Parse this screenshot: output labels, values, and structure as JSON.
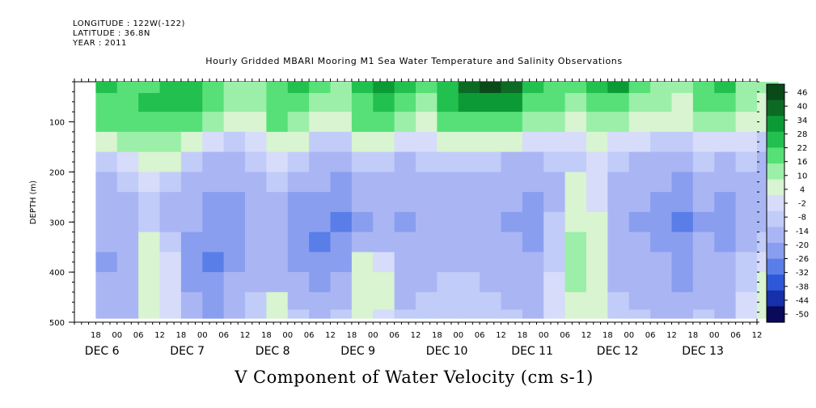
{
  "meta": {
    "longitude": "LONGITUDE : 122W(-122)",
    "latitude": "LATITUDE : 36.8N",
    "year": "YEAR : 2011"
  },
  "colors": {
    "ramp": [
      "#0a0a5a",
      "#1530a8",
      "#2f58d8",
      "#5a7ee8",
      "#8a9ef0",
      "#aab6f4",
      "#c2ccf8",
      "#d6dcfa",
      "#d8f4d0",
      "#9cefa8",
      "#58e078",
      "#22c04e",
      "#0c9a36",
      "#0c6a24",
      "#0a4a18"
    ]
  },
  "chart_data": {
    "type": "heatmap",
    "title": "Hourly Gridded MBARI Mooring M1 Sea Water Temperature and Salinity Observations",
    "xlabel": "V Component of Water Velocity (cm s-1)",
    "ylabel": "DEPTH (m)",
    "ylim": [
      500,
      20
    ],
    "y_ticks": [
      100,
      200,
      300,
      400,
      500
    ],
    "x_hour_ticks": [
      "18",
      "00",
      "06",
      "12",
      "18",
      "00",
      "06",
      "12",
      "18",
      "00",
      "06",
      "12",
      "18",
      "00",
      "06",
      "12",
      "18",
      "00",
      "06",
      "12",
      "18",
      "00",
      "06",
      "12",
      "18",
      "00",
      "06",
      "12",
      "18",
      "00",
      "06",
      "12"
    ],
    "date_labels": [
      "DEC  6",
      "DEC  7",
      "DEC  8",
      "DEC  9",
      "DEC 10",
      "DEC 11",
      "DEC 12",
      "DEC 13"
    ],
    "colorbar_levels": [
      46,
      40,
      34,
      28,
      22,
      16,
      10,
      4,
      -2,
      -8,
      -14,
      -20,
      -26,
      -32,
      -38,
      -44,
      -50
    ],
    "colorbar_labels": [
      "46",
      "40",
      "34",
      "28",
      "22",
      "16",
      "10",
      "4",
      "-2",
      "-8",
      "-14",
      "-20",
      "-26",
      "-32",
      "-38",
      "-44",
      "-50"
    ],
    "data_hours": [
      0,
      6,
      12,
      18,
      24,
      30,
      36,
      42,
      48,
      54,
      60,
      66,
      72,
      78,
      84,
      90,
      96,
      102,
      108,
      114,
      120,
      126,
      132,
      138,
      144,
      150,
      156,
      162,
      168,
      174,
      180,
      186
    ],
    "data_depths": [
      25,
      60,
      100,
      140,
      180,
      220,
      260,
      300,
      340,
      380,
      420,
      460,
      490
    ],
    "values": [
      [
        22,
        14,
        18,
        24,
        26,
        16,
        10,
        12,
        20,
        24,
        16,
        10,
        24,
        30,
        22,
        14,
        26,
        34,
        40,
        34,
        26,
        18,
        14,
        22,
        28,
        16,
        12,
        10,
        18,
        22,
        12,
        8
      ],
      [
        20,
        18,
        22,
        26,
        24,
        14,
        8,
        10,
        20,
        18,
        12,
        8,
        20,
        24,
        18,
        12,
        22,
        28,
        30,
        28,
        20,
        14,
        10,
        18,
        20,
        12,
        10,
        6,
        14,
        16,
        10,
        6
      ],
      [
        14,
        16,
        18,
        20,
        16,
        8,
        4,
        6,
        14,
        10,
        4,
        2,
        14,
        14,
        10,
        6,
        16,
        16,
        18,
        14,
        10,
        8,
        4,
        12,
        10,
        6,
        4,
        2,
        8,
        8,
        6,
        2
      ],
      [
        4,
        8,
        10,
        12,
        6,
        -4,
        -6,
        -2,
        6,
        2,
        -6,
        -8,
        4,
        2,
        -2,
        -4,
        6,
        4,
        6,
        2,
        -2,
        0,
        -4,
        4,
        0,
        -4,
        -6,
        -8,
        0,
        -2,
        -4,
        -6
      ],
      [
        -8,
        -4,
        4,
        2,
        -8,
        -14,
        -12,
        -10,
        -2,
        -10,
        -14,
        -16,
        -10,
        -8,
        -12,
        -10,
        -6,
        -8,
        -6,
        -12,
        -12,
        -8,
        -10,
        -4,
        -10,
        -12,
        -14,
        -16,
        -10,
        -12,
        -10,
        -12
      ],
      [
        -12,
        -10,
        -4,
        -8,
        -14,
        -18,
        -18,
        -14,
        -10,
        -16,
        -18,
        -20,
        -16,
        -14,
        -16,
        -14,
        -12,
        -12,
        -14,
        -16,
        -18,
        -12,
        2,
        -2,
        -14,
        -16,
        -18,
        -22,
        -16,
        -18,
        -14,
        -14
      ],
      [
        -14,
        -12,
        -8,
        -12,
        -16,
        -20,
        -22,
        -16,
        -14,
        -20,
        -22,
        -24,
        -18,
        -16,
        -18,
        -16,
        -14,
        -14,
        -16,
        -18,
        -20,
        -14,
        4,
        0,
        -16,
        -18,
        -20,
        -24,
        -18,
        -20,
        -16,
        -16
      ],
      [
        -16,
        -14,
        -10,
        -14,
        -18,
        -22,
        -24,
        -18,
        -16,
        -22,
        -24,
        -26,
        -20,
        -18,
        -20,
        -18,
        -16,
        -16,
        -18,
        -20,
        -22,
        -10,
        6,
        2,
        -18,
        -20,
        -22,
        -26,
        -20,
        -22,
        -18,
        -14
      ],
      [
        -18,
        -16,
        2,
        -6,
        -20,
        -24,
        -22,
        -16,
        -18,
        -24,
        -26,
        -24,
        -18,
        -16,
        -18,
        -16,
        -14,
        -14,
        -16,
        -18,
        -20,
        -8,
        8,
        4,
        -16,
        -18,
        -20,
        -24,
        -18,
        -20,
        -12,
        -10
      ],
      [
        -20,
        -18,
        6,
        -2,
        -22,
        -26,
        -20,
        -14,
        -16,
        -22,
        -24,
        -20,
        4,
        0,
        -16,
        -14,
        -12,
        -12,
        -14,
        -16,
        -18,
        -6,
        10,
        6,
        -14,
        -16,
        -18,
        -22,
        -16,
        -18,
        -8,
        -4
      ],
      [
        -18,
        -16,
        6,
        0,
        -20,
        -24,
        -18,
        -12,
        -14,
        -18,
        -20,
        -16,
        6,
        2,
        -14,
        -12,
        -10,
        -10,
        -12,
        -14,
        -16,
        -4,
        8,
        6,
        -12,
        -14,
        -16,
        -20,
        -14,
        -16,
        -6,
        2
      ],
      [
        -16,
        -14,
        4,
        0,
        -18,
        -22,
        -16,
        -10,
        2,
        -12,
        -16,
        -12,
        4,
        2,
        -12,
        -10,
        -8,
        -8,
        -10,
        -12,
        -14,
        -2,
        6,
        4,
        -10,
        -12,
        -14,
        -18,
        -12,
        -14,
        -4,
        4
      ],
      [
        -14,
        -12,
        2,
        -2,
        -16,
        -20,
        -14,
        -8,
        4,
        -10,
        -14,
        -10,
        2,
        0,
        -10,
        -8,
        -6,
        -6,
        -8,
        -10,
        -12,
        -2,
        4,
        2,
        -8,
        -10,
        -12,
        -16,
        -10,
        -12,
        -2,
        2
      ]
    ]
  }
}
